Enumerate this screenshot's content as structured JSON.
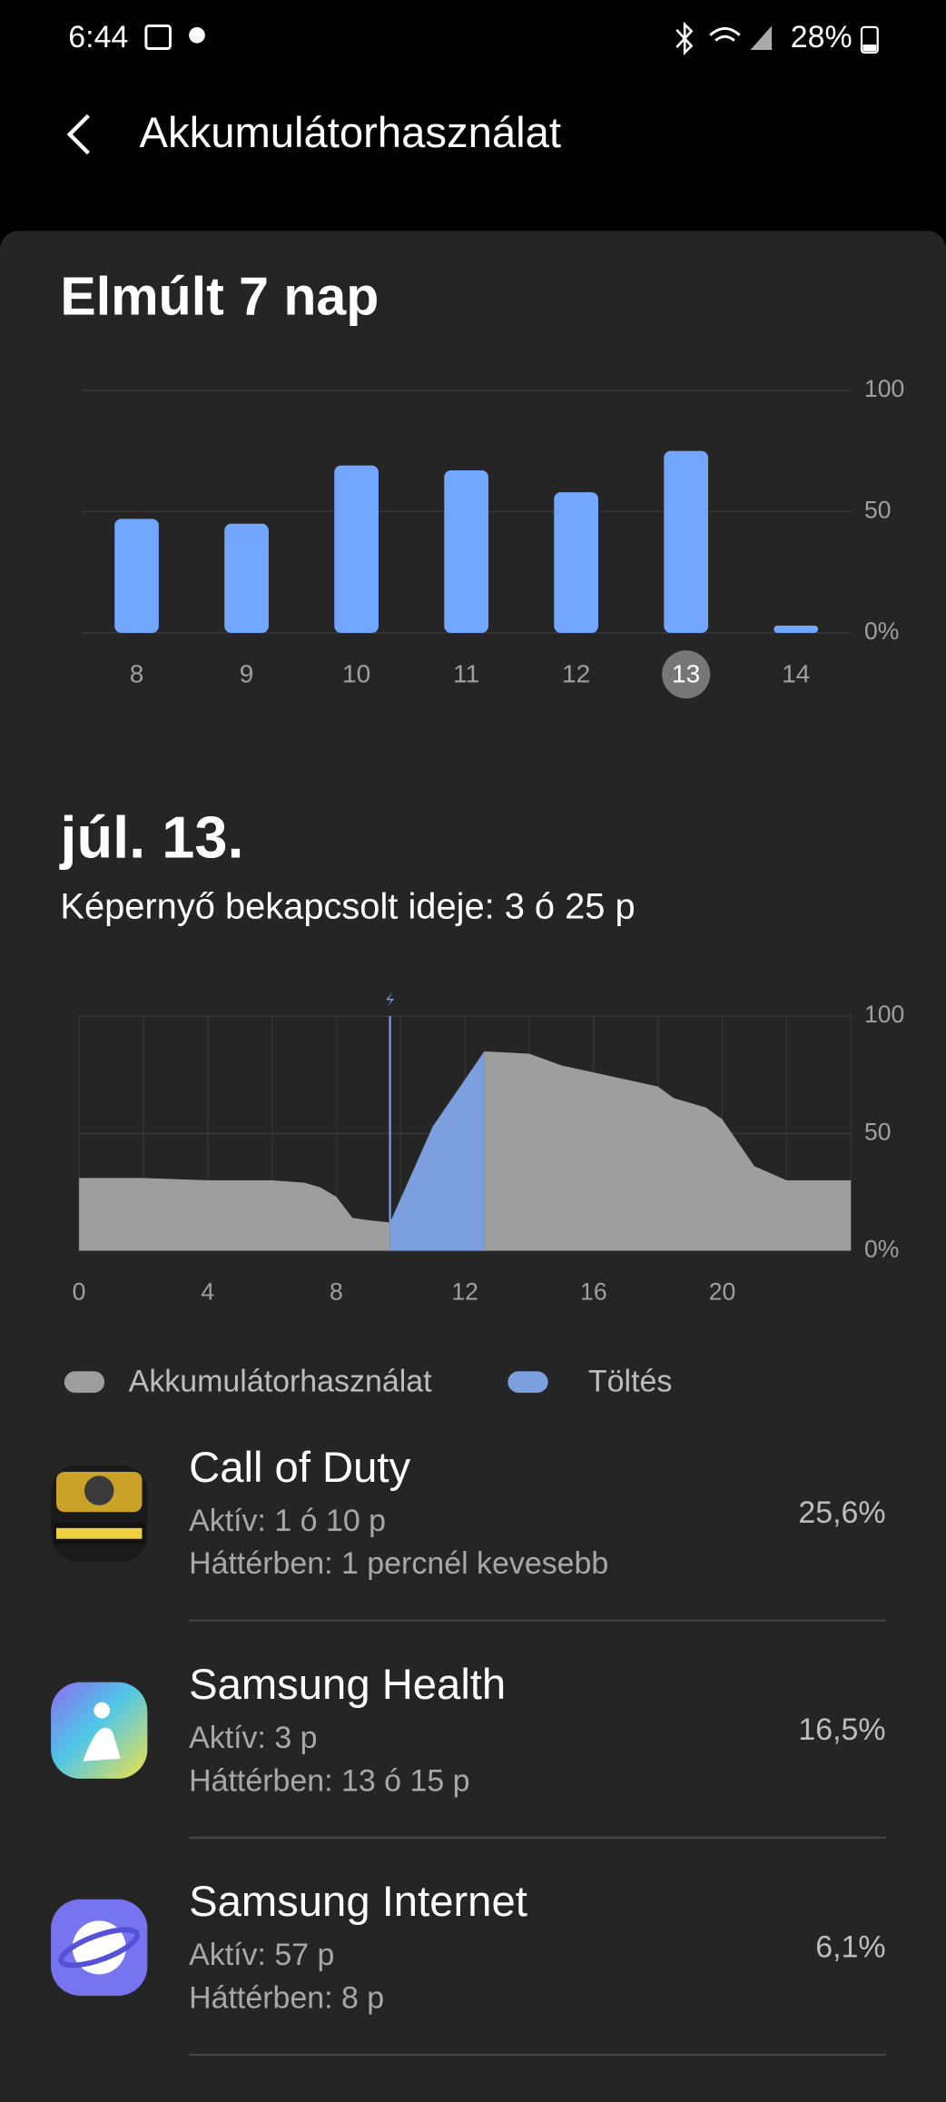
{
  "status_bar": {
    "time": "6:44",
    "battery": "28%"
  },
  "header": {
    "title": "Akkumulátorhasználat"
  },
  "weekly": {
    "title": "Elmúlt 7 nap",
    "chart_data": {
      "type": "bar",
      "categories": [
        "8",
        "9",
        "10",
        "11",
        "12",
        "13",
        "14"
      ],
      "values": [
        47,
        45,
        69,
        67,
        58,
        75,
        3
      ],
      "color": "#73a6ff",
      "selected_index": 5,
      "ylim": [
        0,
        100
      ],
      "yticks": [
        {
          "value": 0,
          "label": "0%"
        },
        50,
        100
      ],
      "grid": true
    }
  },
  "day": {
    "date": "júl. 13.",
    "screen_time": "Képernyő bekapcsolt ideje: 3 ó 25 p",
    "chart_data": {
      "type": "area",
      "xlim": [
        0,
        24
      ],
      "xticks": [
        0,
        4,
        8,
        12,
        16,
        20
      ],
      "ylim": [
        0,
        100
      ],
      "yticks": [
        {
          "value": 0,
          "label": "0%"
        },
        50,
        100
      ],
      "grid": true,
      "series": [
        {
          "name": "Akkumulátorhasználat",
          "color": "#9e9e9e",
          "x": [
            0,
            2,
            4,
            6,
            7,
            7.5,
            8,
            8.5,
            9,
            9.67,
            11,
            12.6,
            14,
            15,
            16,
            17,
            18,
            18.5,
            19.5,
            20,
            21,
            22,
            23,
            24
          ],
          "values": [
            31,
            31,
            30,
            30,
            29,
            27,
            23,
            14,
            13,
            12,
            null,
            85,
            84,
            79,
            76,
            73,
            70,
            65,
            61,
            56,
            36,
            30,
            30,
            30
          ]
        },
        {
          "name": "Töltés",
          "color": "#7c9fe0",
          "x": [
            9.67,
            11,
            12,
            12.6
          ],
          "values": [
            12,
            53,
            73,
            85
          ]
        }
      ]
    }
  },
  "apps": [
    {
      "name": "Call of Duty",
      "active": "Aktív: 1 ó 10 p",
      "background": "Háttérben: 1 percnél kevesebb",
      "percent": "25,6%"
    },
    {
      "name": "Samsung Health",
      "active": "Aktív: 3 p",
      "background": "Háttérben: 13 ó 15 p",
      "percent": "16,5%"
    },
    {
      "name": "Samsung Internet",
      "active": "Aktív: 57 p",
      "background": "Háttérben: 8 p",
      "percent": "6,1%"
    }
  ]
}
